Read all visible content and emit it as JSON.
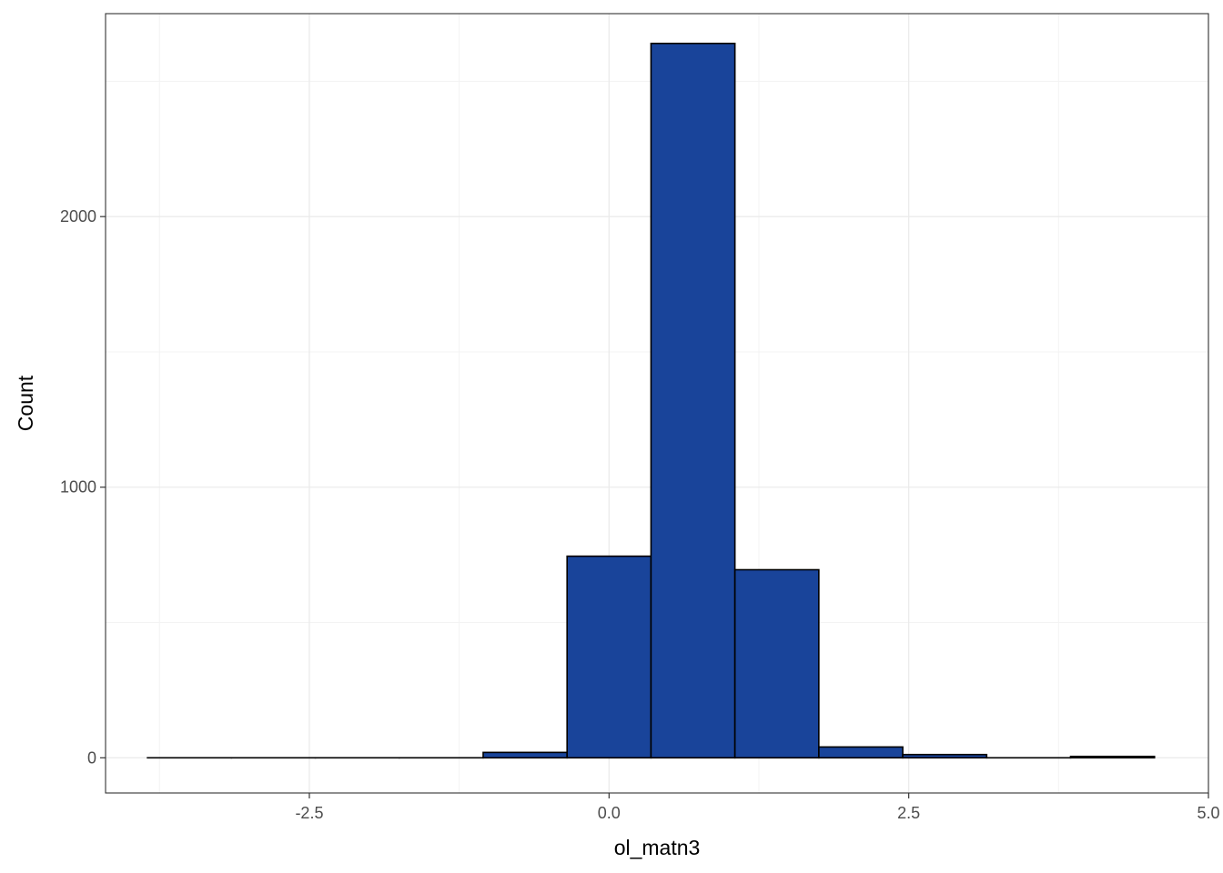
{
  "chart_data": {
    "type": "bar",
    "subtype": "histogram",
    "xlabel": "ol_matn3",
    "ylabel": "Count",
    "xlim": [
      -4.2,
      5.0
    ],
    "ylim": [
      -130,
      2750
    ],
    "x_ticks": [
      -2.5,
      0.0,
      2.5,
      5.0
    ],
    "x_tick_labels": [
      "-2.5",
      "0.0",
      "2.5",
      "5.0"
    ],
    "y_ticks": [
      0,
      1000,
      2000
    ],
    "y_tick_labels": [
      "0",
      "1000",
      "2000"
    ],
    "grid": true,
    "bins": [
      {
        "x0": -3.85,
        "x1": -3.15,
        "count": 0
      },
      {
        "x0": -3.15,
        "x1": -2.45,
        "count": 0
      },
      {
        "x0": -2.45,
        "x1": -1.75,
        "count": 0
      },
      {
        "x0": -1.75,
        "x1": -1.05,
        "count": 0
      },
      {
        "x0": -1.05,
        "x1": -0.35,
        "count": 20
      },
      {
        "x0": -0.35,
        "x1": 0.35,
        "count": 745
      },
      {
        "x0": 0.35,
        "x1": 1.05,
        "count": 2640
      },
      {
        "x0": 1.05,
        "x1": 1.75,
        "count": 695
      },
      {
        "x0": 1.75,
        "x1": 2.45,
        "count": 40
      },
      {
        "x0": 2.45,
        "x1": 3.15,
        "count": 12
      },
      {
        "x0": 3.15,
        "x1": 3.85,
        "count": 0
      },
      {
        "x0": 3.85,
        "x1": 4.55,
        "count": 5
      }
    ],
    "colors": {
      "fill": "#19449a",
      "outline": "#000000",
      "grid_major": "#ebebeb",
      "grid_minor": "#f3f3f3",
      "panel_border": "#333333"
    }
  }
}
